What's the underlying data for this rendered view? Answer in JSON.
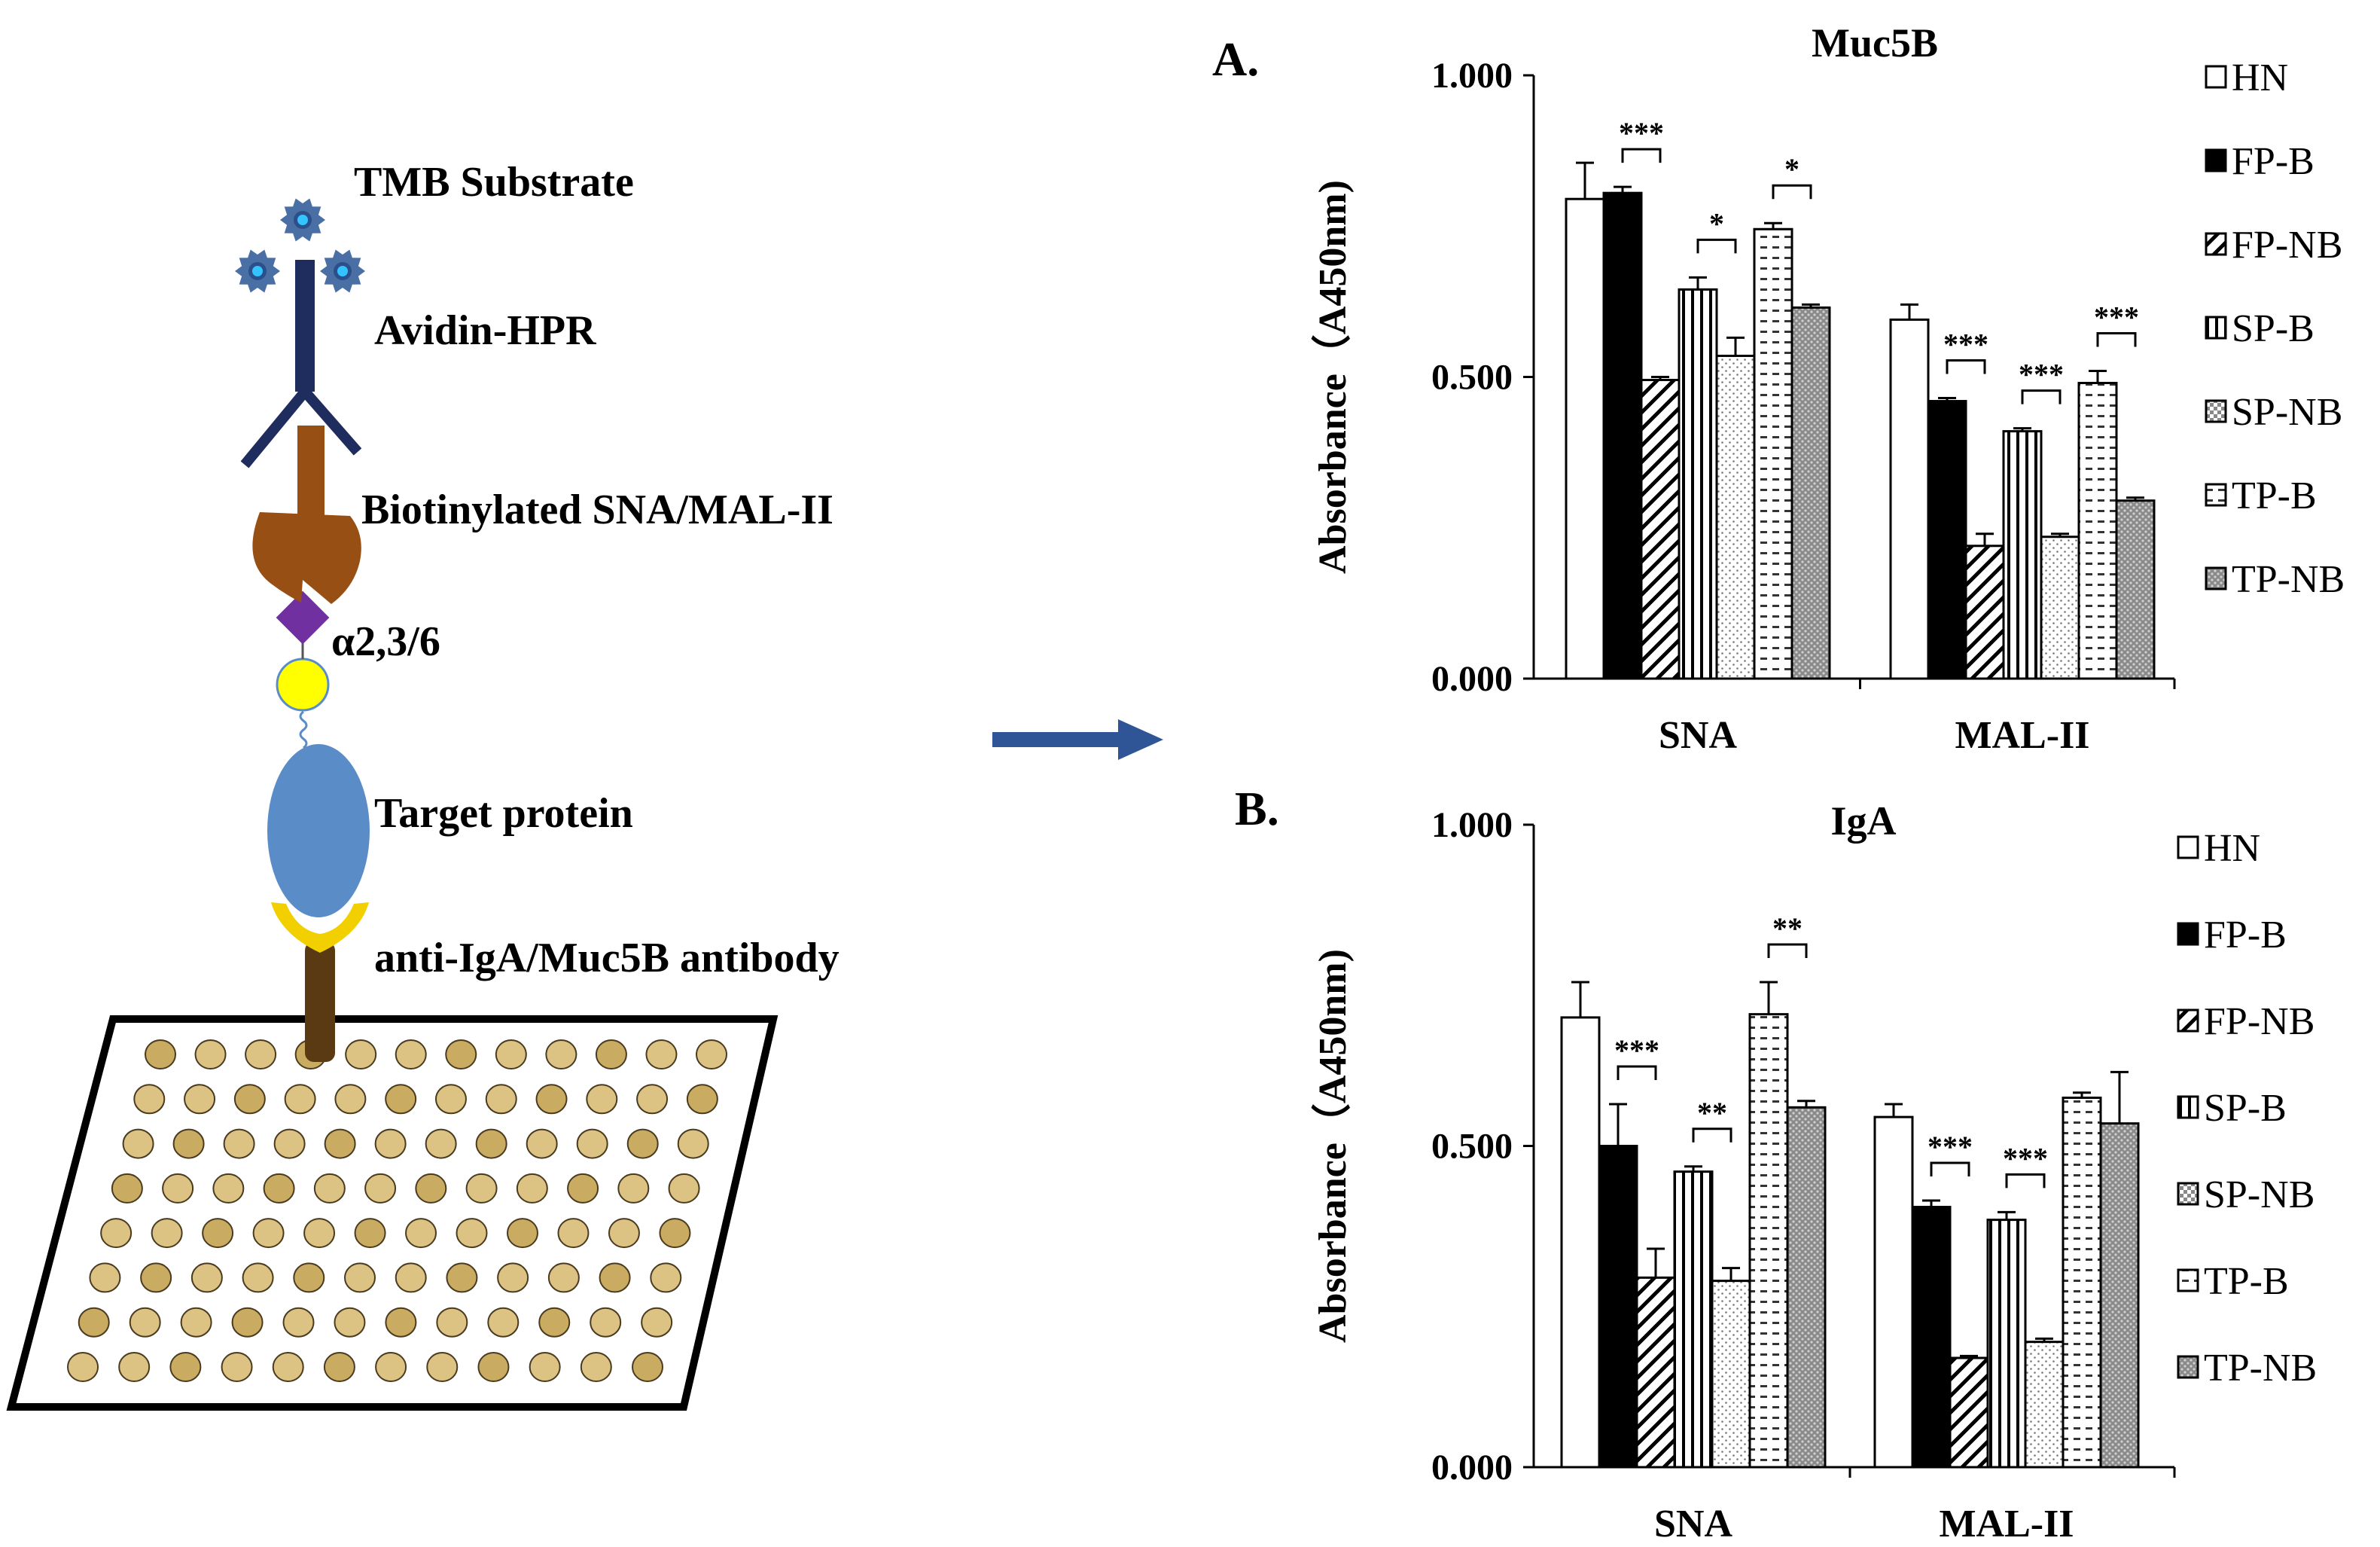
{
  "diagram": {
    "labels": {
      "tmb": "TMB Substrate",
      "avidin": "Avidin-HPR",
      "biotin": "Biotinylated SNA/MAL-II",
      "alpha": "α2,3/6",
      "target": "Target protein",
      "antibody": "anti-IgA/Muc5B antibody"
    }
  },
  "colors": {
    "bar_border": "#000000",
    "arrow": "#2f5597",
    "antibody_body": "#1f2d5e",
    "enzyme": "#4a6fa5",
    "enzyme_center": "#33c3ff",
    "lectin": "#974f13",
    "sugar_diamond": "#7030a0",
    "sugar_circle": "#ffff00",
    "target": "#5a8cc8",
    "capture_y": "#f2d000",
    "stem": "#5a3a12",
    "well": "#d9c185"
  },
  "legend": [
    "HN",
    "FP-B",
    "FP-NB",
    "SP-B",
    "SP-NB",
    "TP-B",
    "TP-NB"
  ],
  "chart_data": [
    {
      "type": "bar",
      "panel_label": "A.",
      "title": "Muc5B",
      "ylabel": "Absorbance（A450nm)",
      "xlabel": "",
      "ylim": [
        0,
        1
      ],
      "yticks": [
        "0.000",
        "0.500",
        "1.000"
      ],
      "categories": [
        "SNA",
        "MAL-II"
      ],
      "series": [
        {
          "name": "HN",
          "values": [
            0.795,
            0.595
          ],
          "errors": [
            0.06,
            0.025
          ]
        },
        {
          "name": "FP-B",
          "values": [
            0.805,
            0.46
          ],
          "errors": [
            0.01,
            0.005
          ]
        },
        {
          "name": "FP-NB",
          "values": [
            0.495,
            0.22
          ],
          "errors": [
            0.005,
            0.02
          ]
        },
        {
          "name": "SP-B",
          "values": [
            0.645,
            0.41
          ],
          "errors": [
            0.02,
            0.005
          ]
        },
        {
          "name": "SP-NB",
          "values": [
            0.535,
            0.235
          ],
          "errors": [
            0.03,
            0.005
          ]
        },
        {
          "name": "TP-B",
          "values": [
            0.745,
            0.49
          ],
          "errors": [
            0.01,
            0.02
          ]
        },
        {
          "name": "TP-NB",
          "values": [
            0.615,
            0.295
          ],
          "errors": [
            0.005,
            0.005
          ]
        }
      ],
      "significance": [
        {
          "category": "SNA",
          "from": 1,
          "to": 2,
          "label": "***"
        },
        {
          "category": "SNA",
          "from": 3,
          "to": 4,
          "label": "*"
        },
        {
          "category": "SNA",
          "from": 5,
          "to": 6,
          "label": "*"
        },
        {
          "category": "MAL-II",
          "from": 1,
          "to": 2,
          "label": "***"
        },
        {
          "category": "MAL-II",
          "from": 3,
          "to": 4,
          "label": "***"
        },
        {
          "category": "MAL-II",
          "from": 5,
          "to": 6,
          "label": "***"
        }
      ]
    },
    {
      "type": "bar",
      "panel_label": "B.",
      "title": "IgA",
      "ylabel": "Absorbance（A450nm)",
      "xlabel": "",
      "ylim": [
        0,
        1
      ],
      "yticks": [
        "0.000",
        "0.500",
        "1.000"
      ],
      "categories": [
        "SNA",
        "MAL-II"
      ],
      "series": [
        {
          "name": "HN",
          "values": [
            0.7,
            0.545
          ],
          "errors": [
            0.055,
            0.02
          ]
        },
        {
          "name": "FP-B",
          "values": [
            0.5,
            0.405
          ],
          "errors": [
            0.065,
            0.01
          ]
        },
        {
          "name": "FP-NB",
          "values": [
            0.295,
            0.17
          ],
          "errors": [
            0.045,
            0.003
          ]
        },
        {
          "name": "SP-B",
          "values": [
            0.46,
            0.385
          ],
          "errors": [
            0.008,
            0.012
          ]
        },
        {
          "name": "SP-NB",
          "values": [
            0.29,
            0.195
          ],
          "errors": [
            0.02,
            0.005
          ]
        },
        {
          "name": "TP-B",
          "values": [
            0.705,
            0.575
          ],
          "errors": [
            0.05,
            0.008
          ]
        },
        {
          "name": "TP-NB",
          "values": [
            0.56,
            0.535
          ],
          "errors": [
            0.01,
            0.08
          ]
        }
      ],
      "significance": [
        {
          "category": "SNA",
          "from": 1,
          "to": 2,
          "label": "***"
        },
        {
          "category": "SNA",
          "from": 3,
          "to": 4,
          "label": "**"
        },
        {
          "category": "SNA",
          "from": 5,
          "to": 6,
          "label": "**"
        },
        {
          "category": "MAL-II",
          "from": 1,
          "to": 2,
          "label": "***"
        },
        {
          "category": "MAL-II",
          "from": 3,
          "to": 4,
          "label": "***"
        }
      ]
    }
  ]
}
